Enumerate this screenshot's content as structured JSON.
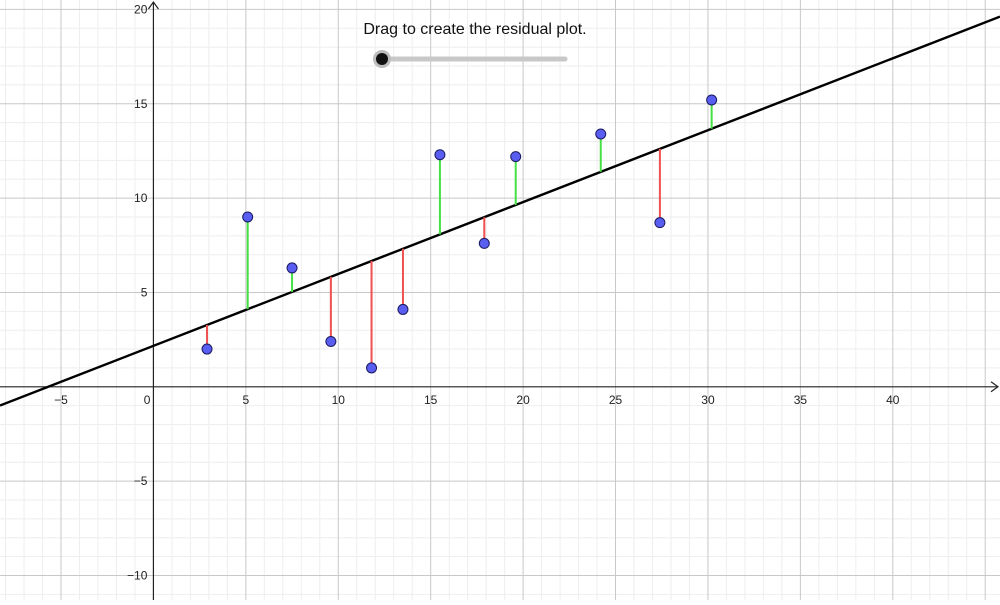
{
  "slider": {
    "label": "Drag to create the residual plot.",
    "value": 0
  },
  "colors": {
    "points": "#5a5ef0",
    "point_stroke": "#1a1a60",
    "residual_positive": "#44e044",
    "residual_negative": "#f05050",
    "regression_line": "#000000",
    "slider_track": "#c8c8c8",
    "slider_knob": "#111111"
  },
  "chart_data": {
    "type": "scatter",
    "title": "",
    "xlabel": "",
    "ylabel": "",
    "xlim": [
      -8.3,
      45.8
    ],
    "ylim": [
      -11.3,
      20.5
    ],
    "grid": true,
    "x_ticks": [
      -5,
      0,
      5,
      10,
      15,
      20,
      25,
      30,
      35,
      40
    ],
    "y_ticks": [
      -10,
      -5,
      5,
      10,
      15,
      20
    ],
    "x_tick_labels": [
      "−5",
      "0",
      "5",
      "10",
      "15",
      "20",
      "25",
      "30",
      "35",
      "40"
    ],
    "y_tick_labels": [
      "−10",
      "−5",
      "5",
      "10",
      "15",
      "20"
    ],
    "regression_line": {
      "slope": 0.381,
      "intercept": 2.17
    },
    "points": [
      {
        "x": 2.9,
        "y": 2.0
      },
      {
        "x": 5.1,
        "y": 9.0
      },
      {
        "x": 7.5,
        "y": 6.3
      },
      {
        "x": 9.6,
        "y": 2.4
      },
      {
        "x": 11.8,
        "y": 1.0
      },
      {
        "x": 13.5,
        "y": 4.1
      },
      {
        "x": 15.5,
        "y": 12.3
      },
      {
        "x": 17.9,
        "y": 7.6
      },
      {
        "x": 19.6,
        "y": 12.2
      },
      {
        "x": 24.2,
        "y": 13.4
      },
      {
        "x": 27.4,
        "y": 8.7
      },
      {
        "x": 30.2,
        "y": 15.2
      }
    ]
  }
}
